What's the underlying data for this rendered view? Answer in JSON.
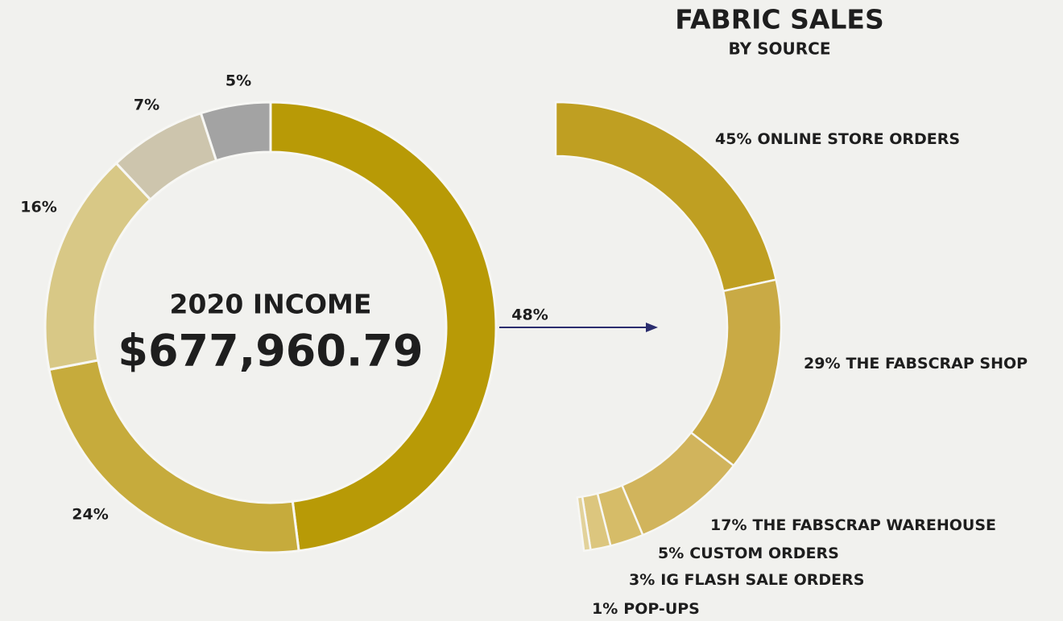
{
  "chart_data": [
    {
      "type": "donut",
      "title": "2020 INCOME",
      "total_label": "$677,960.79",
      "values": [
        48,
        24,
        16,
        7,
        5
      ],
      "value_labels": [
        "48%",
        "24%",
        "16%",
        "7%",
        "5%"
      ],
      "colors": [
        "#b89a06",
        "#c6ab3c",
        "#d8c886",
        "#cdc5ad",
        "#a3a3a3"
      ]
    },
    {
      "type": "arc",
      "title": "FABRIC SALES",
      "subtitle": "BY SOURCE",
      "categories": [
        "ONLINE STORE ORDERS",
        "THE FABSCRAP SHOP",
        "THE FABSCRAP WAREHOUSE",
        "CUSTOM ORDERS",
        "IG FLASH SALE ORDERS",
        "POP-UPS"
      ],
      "values": [
        45,
        29,
        17,
        5,
        3,
        1
      ],
      "value_labels": [
        "45%",
        "29%",
        "17%",
        "5%",
        "3%",
        "1%"
      ],
      "colors": [
        "#bf9f22",
        "#c9aa45",
        "#d1b45c",
        "#d6bc68",
        "#dcc67e",
        "#e2d29b"
      ]
    }
  ]
}
